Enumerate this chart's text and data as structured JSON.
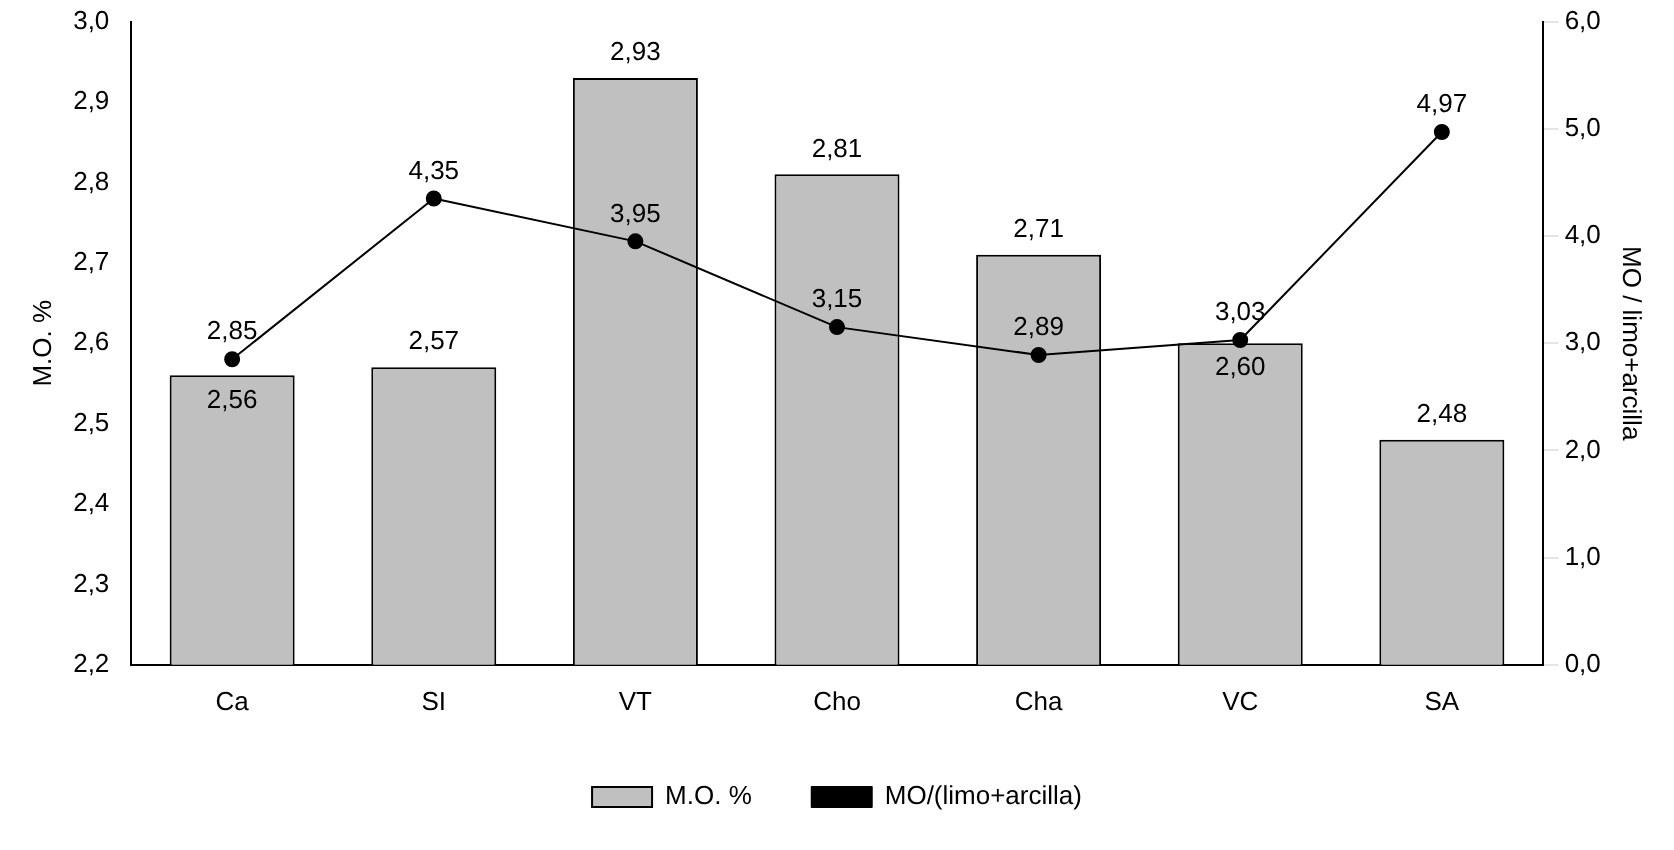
{
  "chart_data": {
    "type": "bar",
    "categories": [
      "Ca",
      "SI",
      "VT",
      "Cho",
      "Cha",
      "VC",
      "SA"
    ],
    "ylabel": "M.O. %",
    "y2label": "MO / limo+arcilla",
    "ylim": [
      2.2,
      3.0
    ],
    "yticks": [
      {
        "value": 2.2,
        "label": "2,2"
      },
      {
        "value": 2.3,
        "label": "2,3"
      },
      {
        "value": 2.4,
        "label": "2,4"
      },
      {
        "value": 2.5,
        "label": "2,5"
      },
      {
        "value": 2.6,
        "label": "2,6"
      },
      {
        "value": 2.7,
        "label": "2,7"
      },
      {
        "value": 2.8,
        "label": "2,8"
      },
      {
        "value": 2.9,
        "label": "2,9"
      },
      {
        "value": 3.0,
        "label": "3,0"
      }
    ],
    "y2lim": [
      0,
      6
    ],
    "y2ticks": [
      {
        "value": 0,
        "label": "0,0"
      },
      {
        "value": 1,
        "label": "1,0"
      },
      {
        "value": 2,
        "label": "2,0"
      },
      {
        "value": 3,
        "label": "3,0"
      },
      {
        "value": 4,
        "label": "4,0"
      },
      {
        "value": 5,
        "label": "5,0"
      },
      {
        "value": 6,
        "label": "6,0"
      }
    ],
    "series": [
      {
        "name": "M.O. %",
        "color": "#c0c0c0",
        "values": [
          2.56,
          2.57,
          2.93,
          2.81,
          2.71,
          2.6,
          2.48
        ],
        "value_labels": [
          "2,56",
          "2,57",
          "2,93",
          "2,81",
          "2,71",
          "2,60",
          "2,48"
        ]
      },
      {
        "name": "MO/(limo+arcilla)",
        "type": "line",
        "axis": "y2",
        "color": "#000000",
        "marker": "circle",
        "values": [
          2.85,
          4.35,
          3.95,
          3.15,
          2.89,
          3.03,
          4.97
        ],
        "value_labels": [
          "2,85",
          "4,35",
          "3,95",
          "3,15",
          "2,89",
          "3,03",
          "4,97"
        ]
      }
    ],
    "legend": "bottom",
    "grid": false
  }
}
